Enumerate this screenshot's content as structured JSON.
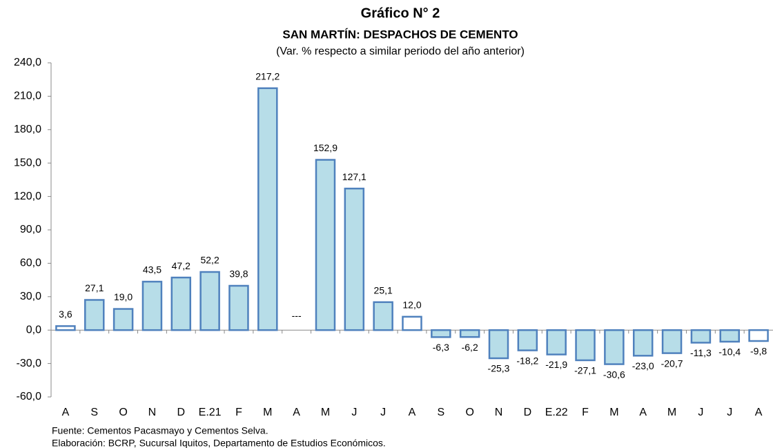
{
  "chart_data": {
    "type": "bar",
    "title": "Gráfico N° 2",
    "subtitle": "SAN MARTÍN: DESPACHOS DE CEMENTO",
    "y_axis_label": "(Var. % respecto a similar periodo del año anterior)",
    "categories": [
      "A",
      "S",
      "O",
      "N",
      "D",
      "E.21",
      "F",
      "M",
      "A",
      "M",
      "J",
      "J",
      "A",
      "S",
      "O",
      "N",
      "D",
      "E.22",
      "F",
      "M",
      "A",
      "M",
      "J",
      "J",
      "A"
    ],
    "values": [
      3.6,
      27.1,
      19.0,
      43.5,
      47.2,
      52.2,
      39.8,
      217.2,
      null,
      152.9,
      127.1,
      25.1,
      12.0,
      -6.3,
      -6.2,
      -25.3,
      -18.2,
      -21.9,
      -27.1,
      -30.6,
      -23.0,
      -20.7,
      -11.3,
      -10.4,
      -9.8
    ],
    "value_labels": [
      "3,6",
      "27,1",
      "19,0",
      "43,5",
      "47,2",
      "52,2",
      "39,8",
      "217,2",
      "---",
      "152,9",
      "127,1",
      "25,1",
      "12,0",
      "-6,3",
      "-6,2",
      "-25,3",
      "-18,2",
      "-21,9",
      "-27,1",
      "-30,6",
      "-23,0",
      "-20,7",
      "-11,3",
      "-10,4",
      "-9,8"
    ],
    "colors": [
      "#ffffff",
      "#b7dde8",
      "#b7dde8",
      "#b7dde8",
      "#b7dde8",
      "#b7dde8",
      "#b7dde8",
      "#b7dde8",
      "#b7dde8",
      "#b7dde8",
      "#b7dde8",
      "#b7dde8",
      "#ffffff",
      "#b7dde8",
      "#b7dde8",
      "#b7dde8",
      "#b7dde8",
      "#b7dde8",
      "#b7dde8",
      "#b7dde8",
      "#b7dde8",
      "#b7dde8",
      "#b7dde8",
      "#b7dde8",
      "#ffffff"
    ],
    "edge_color": "#4f81bd",
    "ylim": [
      -60,
      240
    ],
    "yticks": [
      {
        "value": -60,
        "label": "-60,0"
      },
      {
        "value": -30,
        "label": "-30,0"
      },
      {
        "value": 0,
        "label": "0,0"
      },
      {
        "value": 30,
        "label": "30,0"
      },
      {
        "value": 60,
        "label": "60,0"
      },
      {
        "value": 90,
        "label": "90,0"
      },
      {
        "value": 120,
        "label": "120,0"
      },
      {
        "value": 150,
        "label": "150,0"
      },
      {
        "value": 180,
        "label": "180,0"
      },
      {
        "value": 210,
        "label": "210,0"
      },
      {
        "value": 240,
        "label": "240,0"
      }
    ],
    "grid": false,
    "footnotes": [
      "Fuente: Cementos Pacasmayo y Cementos Selva.",
      "Elaboración: BCRP, Sucursal Iquitos, Departamento de Estudios Económicos."
    ]
  }
}
